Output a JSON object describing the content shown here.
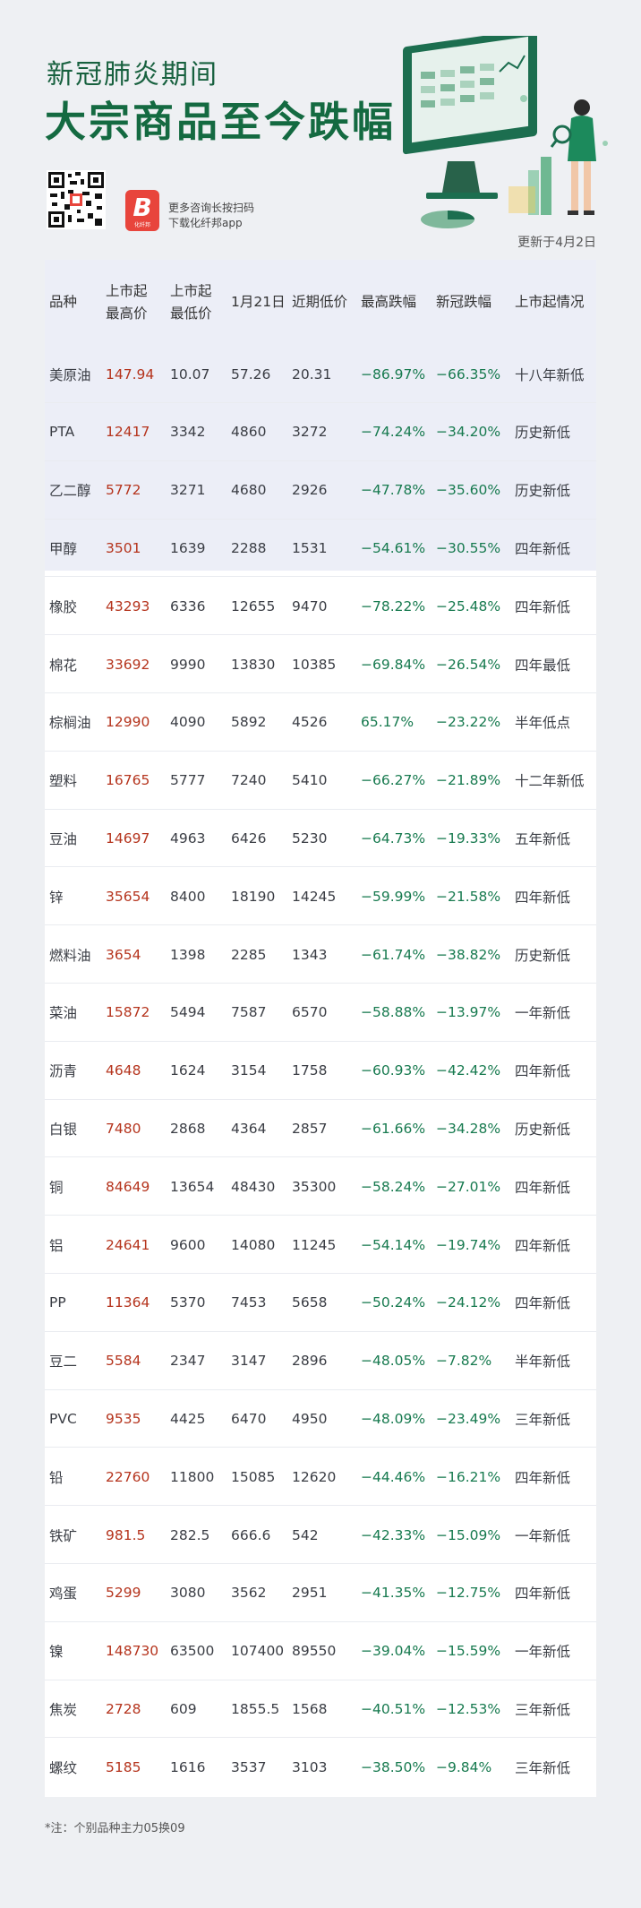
{
  "header": {
    "subtitle": "新冠肺炎期间",
    "title": "大宗商品至今跌幅",
    "app_line1": "更多咨询长按扫码",
    "app_line2": "下载化纤邦app",
    "app_logo_letter": "B",
    "app_logo_caption": "化纤邦",
    "updated": "更新于4月2日"
  },
  "colors": {
    "title": "#146a41",
    "high_price": "#b5341d",
    "drop": "#177a4f",
    "band": "#eceef7"
  },
  "table": {
    "headers": [
      "品种",
      "上市起\n最高价",
      "上市起\n最低价",
      "1月21日",
      "近期低价",
      "最高跌幅",
      "新冠跌幅",
      "上市起情况"
    ],
    "rows": [
      [
        "美原油",
        "147.94",
        "10.07",
        "57.26",
        "20.31",
        "−86.97%",
        "−66.35%",
        "十八年新低"
      ],
      [
        "PTA",
        "12417",
        "3342",
        "4860",
        "3272",
        "−74.24%",
        "−34.20%",
        "历史新低"
      ],
      [
        "乙二醇",
        "5772",
        "3271",
        "4680",
        "2926",
        "−47.78%",
        "−35.60%",
        "历史新低"
      ],
      [
        "甲醇",
        "3501",
        "1639",
        "2288",
        "1531",
        "−54.61%",
        "−30.55%",
        "四年新低"
      ],
      [
        "橡胶",
        "43293",
        "6336",
        "12655",
        "9470",
        "−78.22%",
        "−25.48%",
        "四年新低"
      ],
      [
        "棉花",
        "33692",
        "9990",
        "13830",
        "10385",
        "−69.84%",
        "−26.54%",
        "四年最低"
      ],
      [
        "棕榈油",
        "12990",
        "4090",
        "5892",
        "4526",
        "65.17%",
        "−23.22%",
        "半年低点"
      ],
      [
        "塑料",
        "16765",
        "5777",
        "7240",
        "5410",
        "−66.27%",
        "−21.89%",
        "十二年新低"
      ],
      [
        "豆油",
        "14697",
        "4963",
        "6426",
        "5230",
        "−64.73%",
        "−19.33%",
        "五年新低"
      ],
      [
        "锌",
        "35654",
        "8400",
        "18190",
        "14245",
        "−59.99%",
        "−21.58%",
        "四年新低"
      ],
      [
        "燃料油",
        "3654",
        "1398",
        "2285",
        "1343",
        "−61.74%",
        "−38.82%",
        "历史新低"
      ],
      [
        "菜油",
        "15872",
        "5494",
        "7587",
        "6570",
        "−58.88%",
        "−13.97%",
        "一年新低"
      ],
      [
        "沥青",
        "4648",
        "1624",
        "3154",
        "1758",
        "−60.93%",
        "−42.42%",
        "四年新低"
      ],
      [
        "白银",
        "7480",
        "2868",
        "4364",
        "2857",
        "−61.66%",
        "−34.28%",
        "历史新低"
      ],
      [
        "铜",
        "84649",
        "13654",
        "48430",
        "35300",
        "−58.24%",
        "−27.01%",
        "四年新低"
      ],
      [
        "铝",
        "24641",
        "9600",
        "14080",
        "11245",
        "−54.14%",
        "−19.74%",
        "四年新低"
      ],
      [
        "PP",
        "11364",
        "5370",
        "7453",
        "5658",
        "−50.24%",
        "−24.12%",
        "四年新低"
      ],
      [
        "豆二",
        "5584",
        "2347",
        "3147",
        "2896",
        "−48.05%",
        "−7.82%",
        "半年新低"
      ],
      [
        "PVC",
        "9535",
        "4425",
        "6470",
        "4950",
        "−48.09%",
        "−23.49%",
        "三年新低"
      ],
      [
        "铅",
        "22760",
        "11800",
        "15085",
        "12620",
        "−44.46%",
        "−16.21%",
        "四年新低"
      ],
      [
        "铁矿",
        "981.5",
        "282.5",
        "666.6",
        "542",
        "−42.33%",
        "−15.09%",
        "一年新低"
      ],
      [
        "鸡蛋",
        "5299",
        "3080",
        "3562",
        "2951",
        "−41.35%",
        "−12.75%",
        "四年新低"
      ],
      [
        "镍",
        "148730",
        "63500",
        "107400",
        "89550",
        "−39.04%",
        "−15.59%",
        "一年新低"
      ],
      [
        "焦炭",
        "2728",
        "609",
        "1855.5",
        "1568",
        "−40.51%",
        "−12.53%",
        "三年新低"
      ],
      [
        "螺纹",
        "5185",
        "1616",
        "3537",
        "3103",
        "−38.50%",
        "−9.84%",
        "三年新低"
      ]
    ]
  },
  "note": "*注：个别品种主力05换09"
}
